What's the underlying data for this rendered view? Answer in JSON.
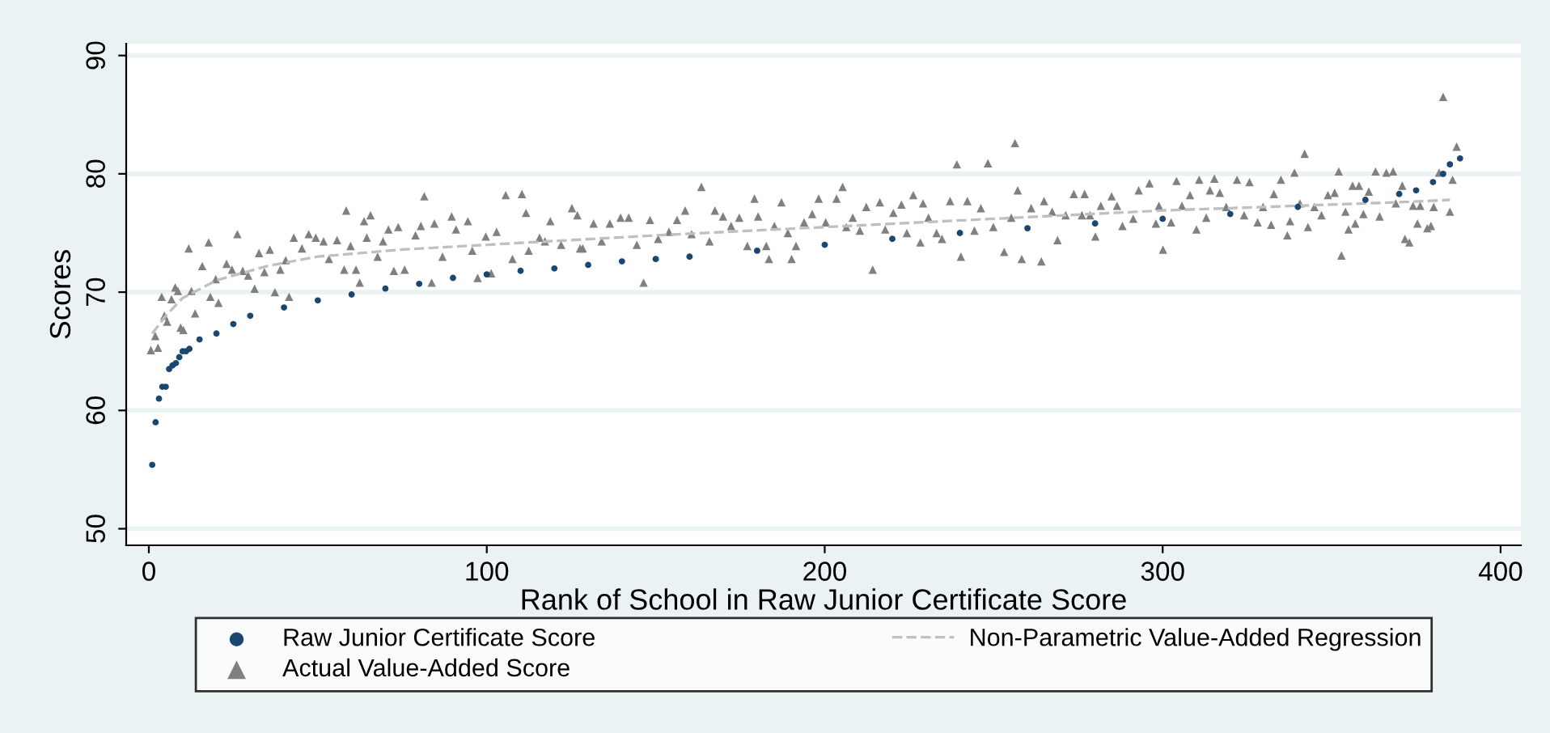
{
  "chart_data": {
    "type": "scatter",
    "xlabel": "Rank of School in Raw Junior Certificate Score",
    "ylabel": "Scores",
    "xlim": [
      -6.7,
      406
    ],
    "ylim": [
      48.6,
      91
    ],
    "xticks": [
      0,
      100,
      200,
      300,
      400
    ],
    "yticks": [
      50,
      60,
      70,
      80,
      90
    ],
    "grid": "y",
    "legend": "bottom",
    "series": [
      {
        "name": "Raw Junior Certificate Score",
        "marker": "circle",
        "color": "#1a476f",
        "x": [
          1,
          2,
          3,
          4,
          5,
          6,
          7,
          8,
          9,
          10,
          11,
          12,
          15,
          20,
          25,
          30,
          40,
          50,
          60,
          70,
          80,
          90,
          100,
          110,
          120,
          130,
          140,
          150,
          160,
          180,
          200,
          220,
          240,
          260,
          280,
          300,
          320,
          340,
          360,
          370,
          375,
          380,
          383,
          385,
          388
        ],
        "values": [
          55.4,
          59,
          61,
          62,
          62,
          63.5,
          63.8,
          64,
          64.5,
          65,
          65,
          65.2,
          66,
          66.5,
          67.3,
          68,
          68.7,
          69.3,
          69.8,
          70.3,
          70.7,
          71.2,
          71.5,
          71.8,
          72,
          72.3,
          72.6,
          72.8,
          73,
          73.5,
          74,
          74.5,
          75,
          75.4,
          75.8,
          76.2,
          76.6,
          77.2,
          77.8,
          78.3,
          78.6,
          79.3,
          80,
          80.8,
          81.3
        ]
      },
      {
        "name": "Actual Value-Added Score",
        "marker": "triangle",
        "color": "#808080",
        "x": [
          0.6,
          1.9,
          2.7,
          3.8,
          4.6,
          5.4,
          6.7,
          7.8,
          8.6,
          9.4,
          10.2,
          11.8,
          12.6,
          13.7,
          15.8,
          17.7,
          18.2,
          19.8,
          20.6,
          23,
          24.6,
          26.2,
          27.8,
          29.4,
          31.3,
          32.6,
          34.2,
          35.8,
          37.3,
          38.9,
          40.5,
          41.5,
          42.9,
          45.3,
          47.3,
          49.4,
          51.7,
          53.3,
          55.7,
          57.8,
          58.4,
          59.7,
          61.3,
          62.4,
          63.7,
          64.5,
          65.6,
          67.7,
          69.3,
          70.9,
          72.5,
          73.8,
          75.7,
          78.9,
          80.5,
          81.5,
          83.7,
          84.5,
          86.9,
          89.6,
          90.9,
          94.4,
          95.7,
          97.3,
          99.7,
          101.3,
          102.9,
          105.6,
          107.6,
          110.4,
          111.6,
          112.4,
          115.6,
          117.2,
          118.8,
          122,
          125.2,
          127.6,
          126.8,
          128.4,
          131.6,
          134,
          136.4,
          139.6,
          142,
          144.4,
          146.4,
          148.3,
          150.7,
          153.9,
          156.3,
          158.7,
          160.6,
          163.5,
          165.9,
          167.5,
          169.9,
          172.3,
          174.7,
          177.1,
          179.2,
          180.3,
          182.7,
          183.5,
          185.1,
          187.2,
          189.1,
          190.2,
          191.5,
          193.9,
          196.3,
          198.2,
          200.3,
          203.5,
          205.3,
          206.4,
          208.3,
          210.4,
          212.3,
          214.2,
          216.3,
          217.9,
          220.3,
          222.7,
          224.3,
          226.2,
          228.3,
          229.1,
          230.7,
          233.1,
          234.7,
          237.1,
          239.1,
          240.3,
          242.2,
          244.3,
          246.2,
          248.3,
          249.9,
          253.1,
          255.2,
          256.3,
          257.1,
          258.3,
          261.1,
          264.1,
          264.9,
          267.3,
          268.9,
          271.3,
          273.7,
          276.1,
          276.9,
          278.5,
          280.1,
          281.7,
          284.9,
          286.5,
          288.1,
          291.3,
          292.9,
          296.1,
          298,
          298.9,
          300.1,
          302.5,
          304.1,
          305.7,
          308.1,
          310,
          310.8,
          312.9,
          314,
          315.3,
          316.9,
          318.8,
          322,
          324.1,
          325.7,
          328.1,
          329.7,
          332.1,
          332.9,
          335,
          336.9,
          337.7,
          339,
          340.6,
          342,
          343,
          344.9,
          347,
          348.9,
          350.9,
          352.1,
          352.9,
          354.1,
          355,
          356.2,
          357,
          358.1,
          359.4,
          361,
          363,
          364.2,
          366.2,
          368.2,
          369,
          370.9,
          371.7,
          373,
          374.1,
          375.4,
          376.2,
          378.3,
          379.4,
          380.2,
          381.8,
          383,
          385,
          385.8,
          387
        ],
        "values": [
          65.1,
          66.3,
          65.3,
          69.6,
          68,
          67.5,
          69.4,
          70.4,
          70.1,
          67,
          66.8,
          73.7,
          70.1,
          68.2,
          72.2,
          74.2,
          69.6,
          71.1,
          69.1,
          72.4,
          71.9,
          74.9,
          71.8,
          71.4,
          70.3,
          73.3,
          71.7,
          73.6,
          70,
          71.9,
          72.7,
          69.6,
          74.6,
          73.7,
          74.9,
          74.6,
          74.3,
          72.8,
          74.4,
          71.9,
          76.9,
          73.9,
          71.9,
          70.8,
          76,
          74.6,
          76.5,
          73,
          74.3,
          75.3,
          71.8,
          75.5,
          71.9,
          74.8,
          75.6,
          78.1,
          70.8,
          75.8,
          73,
          76.4,
          75.3,
          76,
          73.5,
          71.2,
          74.7,
          71.6,
          75.1,
          78.2,
          72.8,
          78.3,
          76.7,
          73.5,
          74.6,
          74.3,
          76,
          74,
          77.1,
          73.7,
          76.5,
          73.7,
          75.8,
          74.3,
          75.8,
          76.3,
          76.3,
          74,
          70.8,
          76.1,
          74.5,
          75.1,
          76.1,
          76.9,
          74.9,
          78.9,
          74.3,
          76.9,
          76.4,
          75.6,
          76.3,
          73.9,
          77.9,
          76.4,
          73.9,
          72.8,
          75.6,
          77.6,
          75,
          72.8,
          73.9,
          75.9,
          76.6,
          77.9,
          75.9,
          77.9,
          78.9,
          75.5,
          76.3,
          75.2,
          77.2,
          71.9,
          77.6,
          75.3,
          76.7,
          77.4,
          75,
          78.2,
          74.2,
          77.5,
          76.3,
          75,
          74.5,
          77.7,
          80.8,
          73,
          77.7,
          75.2,
          77.1,
          80.9,
          75.5,
          73.4,
          76.3,
          82.6,
          78.6,
          72.8,
          77.1,
          72.6,
          77.7,
          76.8,
          74.4,
          76.5,
          78.3,
          76.5,
          78.3,
          76.5,
          74.7,
          77.3,
          78.1,
          77.3,
          75.6,
          76.2,
          78.6,
          79.2,
          75.8,
          77.3,
          73.6,
          75.9,
          79.4,
          77.3,
          78.2,
          75.3,
          79.5,
          76.3,
          78.6,
          79.6,
          78.4,
          77.2,
          79.5,
          76.5,
          79.3,
          75.9,
          77.2,
          75.7,
          78.3,
          79.5,
          74.8,
          76,
          80.1,
          77.5,
          81.7,
          75.5,
          77.2,
          76.5,
          78.2,
          78.4,
          80.2,
          73.1,
          76.8,
          75.3,
          79,
          75.8,
          79,
          76.6,
          78.5,
          80.2,
          76.4,
          80.1,
          80.2,
          77.5,
          79,
          74.5,
          74.2,
          77.3,
          75.8,
          77.3,
          75.4,
          75.6,
          77.2,
          80.1,
          86.5,
          76.8,
          79.5,
          82.3
        ]
      },
      {
        "name": "Non-Parametric Value-Added Regression",
        "type": "line",
        "marker": "none",
        "line_style": "dashed",
        "color": "#c0c0c0",
        "x": [
          1,
          5,
          10,
          20,
          35,
          50,
          75,
          100,
          150,
          200,
          250,
          300,
          340,
          370,
          385
        ],
        "values": [
          66.5,
          68,
          69.5,
          71,
          72.2,
          73,
          73.6,
          74,
          74.8,
          75.5,
          76.2,
          76.9,
          77.3,
          77.6,
          77.8
        ]
      }
    ]
  }
}
